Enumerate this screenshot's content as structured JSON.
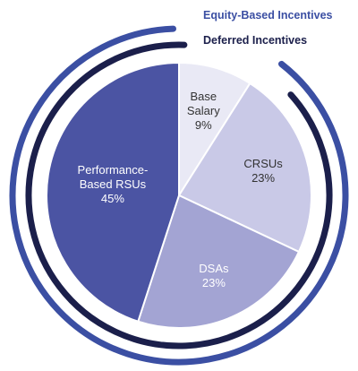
{
  "chart_data": {
    "type": "pie",
    "categories": [
      "Base Salary",
      "CRSUs",
      "DSAs",
      "Performance-Based RSUs"
    ],
    "values": [
      9,
      23,
      23,
      45
    ],
    "value_labels": [
      "9%",
      "23%",
      "23%",
      "45%"
    ],
    "colors": [
      "#e9e9f5",
      "#c9c9e7",
      "#a3a4d3",
      "#4b54a3"
    ],
    "rings": [
      {
        "name": "Equity-Based Incentives",
        "color": "#3b4fa3"
      },
      {
        "name": "Deferred Incentives",
        "color": "#1b1f4b"
      }
    ]
  }
}
